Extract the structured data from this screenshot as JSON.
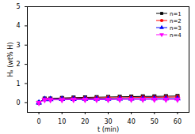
{
  "chart_data": {
    "type": "line",
    "x_label": "t (min)",
    "y_label": "Hₐ (wt% H)",
    "x": [
      0,
      2.5,
      5,
      10,
      15,
      20,
      25,
      30,
      35,
      40,
      45,
      50,
      55,
      60
    ],
    "series": [
      {
        "name": "n=1",
        "color": "#000000",
        "marker": "square",
        "values": [
          0,
          0.22,
          0.22,
          0.25,
          0.27,
          0.28,
          0.29,
          0.3,
          0.31,
          0.32,
          0.33,
          0.33,
          0.34,
          0.35
        ]
      },
      {
        "name": "n=2",
        "color": "#ff0000",
        "marker": "circle",
        "values": [
          0,
          0.2,
          0.2,
          0.22,
          0.23,
          0.24,
          0.25,
          0.26,
          0.26,
          0.27,
          0.28,
          0.28,
          0.29,
          0.3
        ]
      },
      {
        "name": "n=3",
        "color": "#0000ff",
        "marker": "triangle",
        "values": [
          0,
          0.18,
          0.18,
          0.19,
          0.19,
          0.2,
          0.2,
          0.2,
          0.21,
          0.21,
          0.21,
          0.22,
          0.22,
          0.22
        ]
      },
      {
        "name": "n=4",
        "color": "#ff00ff",
        "marker": "triangle_down",
        "values": [
          0,
          0.15,
          0.15,
          0.15,
          0.16,
          0.16,
          0.16,
          0.16,
          0.17,
          0.17,
          0.17,
          0.17,
          0.17,
          0.17
        ]
      }
    ],
    "xlim": [
      -5,
      65
    ],
    "xticks": [
      0,
      10,
      20,
      30,
      40,
      50,
      60
    ],
    "ylim": [
      -0.5,
      5
    ],
    "yticks": [
      0,
      1,
      2,
      3,
      4,
      5
    ],
    "legend": "upper right",
    "grid": false
  }
}
